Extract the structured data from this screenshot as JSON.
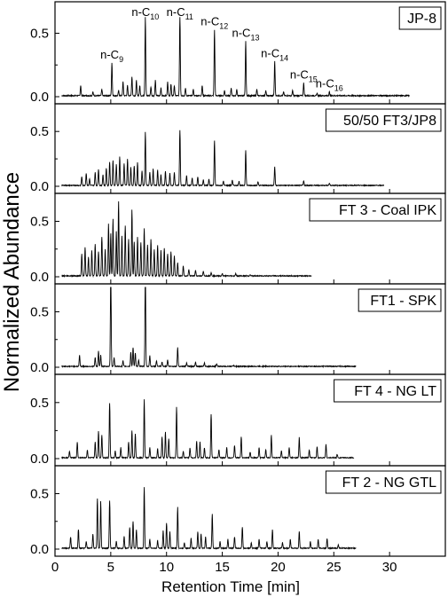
{
  "chart_data": {
    "type": "line",
    "xlabel": "Retention Time [min]",
    "ylabel": "Normalized Abundance",
    "xlim": [
      0,
      35
    ],
    "x_ticks": [
      "0",
      "5",
      "10",
      "15",
      "20",
      "25",
      "30"
    ],
    "x_tick_values": [
      0,
      5,
      10,
      15,
      20,
      25,
      30
    ],
    "ylim": [
      0,
      0.72
    ],
    "y_ticks": [
      "0.0",
      "0.5"
    ],
    "y_tick_values": [
      0.0,
      0.5
    ],
    "panels": [
      {
        "name": "JP-8",
        "end_time": 31.8,
        "peak_labels": [
          {
            "base": "n-C",
            "sub": "9",
            "x": 5.1
          },
          {
            "base": "n-C",
            "sub": "10",
            "x": 8.1
          },
          {
            "base": "n-C",
            "sub": "11",
            "x": 11.2
          },
          {
            "base": "n-C",
            "sub": "12",
            "x": 14.3
          },
          {
            "base": "n-C",
            "sub": "13",
            "x": 17.1
          },
          {
            "base": "n-C",
            "sub": "14",
            "x": 19.7
          },
          {
            "base": "n-C",
            "sub": "15",
            "x": 22.3
          },
          {
            "base": "n-C",
            "sub": "16",
            "x": 24.6
          }
        ],
        "peaks": [
          [
            2.3,
            0.08
          ],
          [
            3.4,
            0.03
          ],
          [
            4.2,
            0.05
          ],
          [
            5.1,
            0.26
          ],
          [
            5.7,
            0.04
          ],
          [
            6.1,
            0.11
          ],
          [
            6.5,
            0.08
          ],
          [
            6.9,
            0.15
          ],
          [
            7.3,
            0.12
          ],
          [
            7.6,
            0.08
          ],
          [
            8.1,
            0.62
          ],
          [
            8.6,
            0.07
          ],
          [
            9.0,
            0.12
          ],
          [
            9.5,
            0.06
          ],
          [
            10.1,
            0.11
          ],
          [
            10.4,
            0.09
          ],
          [
            10.7,
            0.08
          ],
          [
            11.2,
            0.62
          ],
          [
            11.7,
            0.06
          ],
          [
            12.4,
            0.05
          ],
          [
            13.2,
            0.08
          ],
          [
            14.3,
            0.52
          ],
          [
            15.2,
            0.04
          ],
          [
            15.8,
            0.06
          ],
          [
            16.3,
            0.05
          ],
          [
            17.1,
            0.43
          ],
          [
            18.1,
            0.05
          ],
          [
            18.9,
            0.04
          ],
          [
            19.7,
            0.27
          ],
          [
            20.5,
            0.03
          ],
          [
            21.3,
            0.04
          ],
          [
            22.3,
            0.1
          ],
          [
            23.5,
            0.02
          ],
          [
            24.6,
            0.03
          ]
        ]
      },
      {
        "name": "50/50 FT3/JP8",
        "end_time": 29.5,
        "peaks": [
          [
            2.4,
            0.08
          ],
          [
            2.8,
            0.11
          ],
          [
            3.1,
            0.06
          ],
          [
            3.6,
            0.12
          ],
          [
            3.9,
            0.15
          ],
          [
            4.3,
            0.1
          ],
          [
            4.6,
            0.16
          ],
          [
            4.9,
            0.21
          ],
          [
            5.2,
            0.23
          ],
          [
            5.5,
            0.19
          ],
          [
            5.8,
            0.26
          ],
          [
            6.2,
            0.2
          ],
          [
            6.5,
            0.24
          ],
          [
            6.8,
            0.17
          ],
          [
            7.1,
            0.18
          ],
          [
            7.4,
            0.21
          ],
          [
            7.8,
            0.13
          ],
          [
            8.1,
            0.49
          ],
          [
            8.5,
            0.12
          ],
          [
            8.8,
            0.15
          ],
          [
            9.2,
            0.14
          ],
          [
            9.5,
            0.1
          ],
          [
            9.9,
            0.13
          ],
          [
            10.3,
            0.11
          ],
          [
            10.7,
            0.12
          ],
          [
            11.2,
            0.5
          ],
          [
            11.8,
            0.09
          ],
          [
            12.3,
            0.07
          ],
          [
            12.8,
            0.08
          ],
          [
            13.3,
            0.05
          ],
          [
            13.8,
            0.06
          ],
          [
            14.3,
            0.41
          ],
          [
            15.1,
            0.04
          ],
          [
            15.9,
            0.05
          ],
          [
            16.5,
            0.04
          ],
          [
            17.1,
            0.32
          ],
          [
            18.2,
            0.03
          ],
          [
            19.7,
            0.17
          ],
          [
            22.3,
            0.04
          ],
          [
            24.6,
            0.02
          ]
        ]
      },
      {
        "name": "FT 3 - Coal IPK",
        "end_time": 23.0,
        "peaks": [
          [
            2.4,
            0.2
          ],
          [
            2.7,
            0.26
          ],
          [
            3.0,
            0.17
          ],
          [
            3.3,
            0.23
          ],
          [
            3.6,
            0.29
          ],
          [
            3.9,
            0.22
          ],
          [
            4.2,
            0.35
          ],
          [
            4.5,
            0.24
          ],
          [
            4.8,
            0.47
          ],
          [
            5.0,
            0.38
          ],
          [
            5.2,
            0.51
          ],
          [
            5.5,
            0.4
          ],
          [
            5.7,
            0.67
          ],
          [
            6.0,
            0.36
          ],
          [
            6.3,
            0.45
          ],
          [
            6.6,
            0.33
          ],
          [
            6.9,
            0.6
          ],
          [
            7.1,
            0.31
          ],
          [
            7.4,
            0.35
          ],
          [
            7.7,
            0.3
          ],
          [
            8.0,
            0.43
          ],
          [
            8.3,
            0.28
          ],
          [
            8.6,
            0.33
          ],
          [
            8.9,
            0.24
          ],
          [
            9.2,
            0.28
          ],
          [
            9.5,
            0.23
          ],
          [
            9.8,
            0.25
          ],
          [
            10.1,
            0.2
          ],
          [
            10.4,
            0.22
          ],
          [
            10.7,
            0.18
          ],
          [
            11.0,
            0.12
          ],
          [
            11.5,
            0.09
          ],
          [
            12.0,
            0.06
          ],
          [
            12.6,
            0.05
          ],
          [
            13.3,
            0.04
          ],
          [
            14.0,
            0.03
          ],
          [
            15.0,
            0.02
          ],
          [
            16.2,
            0.02
          ],
          [
            17.5,
            0.01
          ]
        ]
      },
      {
        "name": "FT1 - SPK",
        "end_time": 27.0,
        "peaks": [
          [
            2.2,
            0.1
          ],
          [
            3.6,
            0.08
          ],
          [
            3.9,
            0.14
          ],
          [
            4.1,
            0.1
          ],
          [
            5.0,
            0.91
          ],
          [
            5.3,
            0.08
          ],
          [
            6.1,
            0.05
          ],
          [
            6.8,
            0.13
          ],
          [
            7.0,
            0.17
          ],
          [
            7.2,
            0.12
          ],
          [
            7.5,
            0.06
          ],
          [
            8.1,
            0.88
          ],
          [
            8.5,
            0.1
          ],
          [
            9.1,
            0.05
          ],
          [
            9.6,
            0.04
          ],
          [
            10.1,
            0.06
          ],
          [
            11.0,
            0.17
          ],
          [
            11.8,
            0.03
          ],
          [
            12.6,
            0.04
          ],
          [
            13.4,
            0.03
          ],
          [
            14.5,
            0.02
          ],
          [
            16.0,
            0.01
          ]
        ]
      },
      {
        "name": "FT 4 - NG LT",
        "end_time": 26.8,
        "peaks": [
          [
            1.3,
            0.06
          ],
          [
            2.0,
            0.14
          ],
          [
            2.9,
            0.07
          ],
          [
            3.6,
            0.14
          ],
          [
            3.9,
            0.24
          ],
          [
            4.2,
            0.2
          ],
          [
            4.9,
            0.49
          ],
          [
            5.4,
            0.06
          ],
          [
            5.9,
            0.09
          ],
          [
            6.6,
            0.14
          ],
          [
            6.9,
            0.24
          ],
          [
            7.2,
            0.21
          ],
          [
            8.0,
            0.52
          ],
          [
            8.5,
            0.09
          ],
          [
            9.2,
            0.08
          ],
          [
            9.6,
            0.19
          ],
          [
            9.9,
            0.23
          ],
          [
            10.2,
            0.17
          ],
          [
            10.9,
            0.45
          ],
          [
            11.5,
            0.06
          ],
          [
            12.1,
            0.09
          ],
          [
            12.7,
            0.15
          ],
          [
            13.0,
            0.14
          ],
          [
            13.4,
            0.09
          ],
          [
            14.0,
            0.39
          ],
          [
            14.7,
            0.07
          ],
          [
            15.4,
            0.09
          ],
          [
            16.1,
            0.11
          ],
          [
            16.7,
            0.19
          ],
          [
            17.5,
            0.05
          ],
          [
            18.3,
            0.09
          ],
          [
            18.9,
            0.07
          ],
          [
            19.4,
            0.2
          ],
          [
            20.3,
            0.06
          ],
          [
            21.0,
            0.09
          ],
          [
            21.9,
            0.18
          ],
          [
            22.8,
            0.07
          ],
          [
            23.5,
            0.1
          ],
          [
            24.3,
            0.12
          ],
          [
            25.3,
            0.03
          ]
        ]
      },
      {
        "name": "FT 2 - NG GTL",
        "end_time": 27.0,
        "peaks": [
          [
            1.4,
            0.1
          ],
          [
            2.1,
            0.17
          ],
          [
            2.8,
            0.06
          ],
          [
            3.4,
            0.13
          ],
          [
            3.8,
            0.45
          ],
          [
            4.1,
            0.42
          ],
          [
            4.9,
            0.43
          ],
          [
            5.5,
            0.06
          ],
          [
            6.2,
            0.11
          ],
          [
            6.7,
            0.19
          ],
          [
            7.0,
            0.24
          ],
          [
            7.3,
            0.17
          ],
          [
            8.0,
            0.55
          ],
          [
            8.5,
            0.08
          ],
          [
            9.2,
            0.07
          ],
          [
            9.7,
            0.16
          ],
          [
            10.0,
            0.23
          ],
          [
            10.3,
            0.15
          ],
          [
            11.0,
            0.37
          ],
          [
            11.6,
            0.05
          ],
          [
            12.2,
            0.09
          ],
          [
            12.8,
            0.15
          ],
          [
            13.1,
            0.13
          ],
          [
            13.5,
            0.1
          ],
          [
            14.1,
            0.31
          ],
          [
            14.8,
            0.06
          ],
          [
            15.5,
            0.08
          ],
          [
            16.1,
            0.1
          ],
          [
            16.8,
            0.19
          ],
          [
            17.6,
            0.05
          ],
          [
            18.3,
            0.08
          ],
          [
            19.0,
            0.06
          ],
          [
            19.5,
            0.17
          ],
          [
            20.4,
            0.05
          ],
          [
            21.1,
            0.08
          ],
          [
            21.9,
            0.15
          ],
          [
            22.9,
            0.06
          ],
          [
            23.6,
            0.08
          ],
          [
            24.4,
            0.09
          ],
          [
            25.4,
            0.03
          ]
        ]
      }
    ]
  },
  "colors": {
    "line": "#000000",
    "background": "#ffffff"
  }
}
